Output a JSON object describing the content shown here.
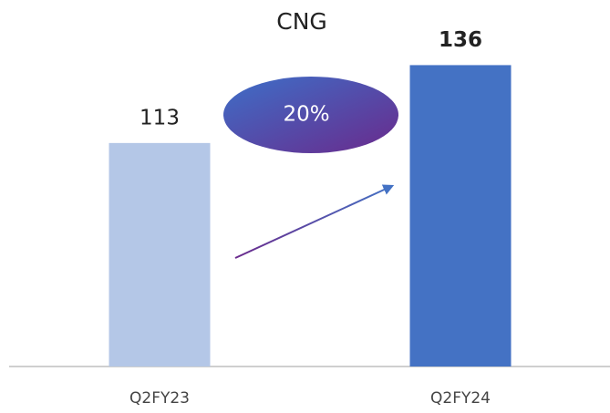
{
  "chart_data": {
    "type": "bar",
    "title": "CNG",
    "categories": [
      "Q2FY23",
      "Q2FY24"
    ],
    "values": [
      113,
      136
    ],
    "colors": [
      "#b4c7e7",
      "#4472c4"
    ],
    "annotation": "20%",
    "ylim": [
      47,
      145
    ]
  }
}
